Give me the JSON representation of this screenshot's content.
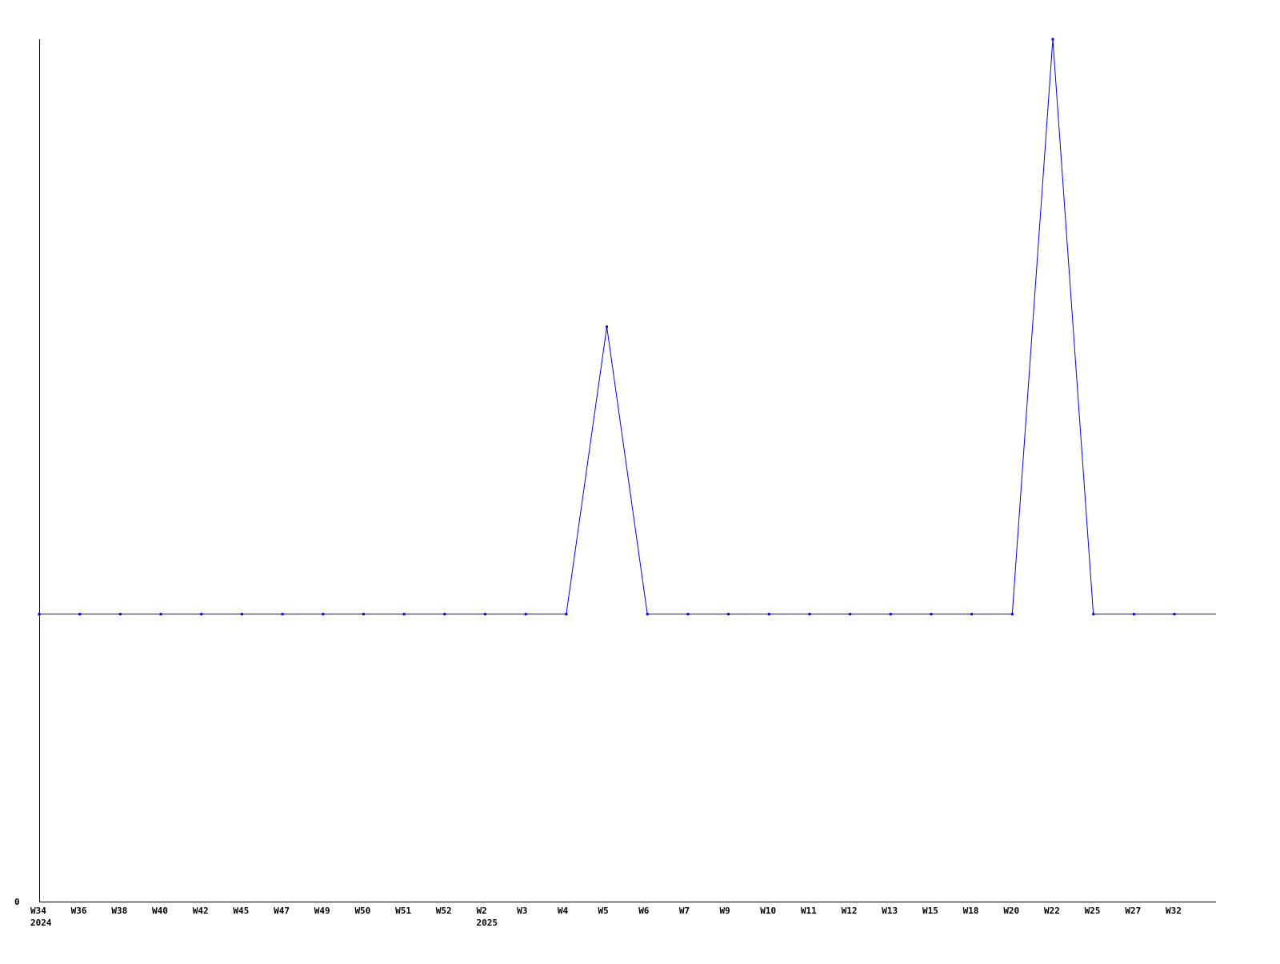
{
  "chart_data": {
    "type": "line",
    "categories": [
      "W34",
      "W36",
      "W38",
      "W40",
      "W42",
      "W45",
      "W47",
      "W49",
      "W50",
      "W51",
      "W52",
      "W2",
      "W3",
      "W4",
      "W5",
      "W6",
      "W7",
      "W9",
      "W10",
      "W11",
      "W12",
      "W13",
      "W15",
      "W18",
      "W20",
      "W22",
      "W25",
      "W27",
      "W32"
    ],
    "year_labels": [
      {
        "index": 0,
        "label": "2024"
      },
      {
        "index": 11,
        "label": "2025"
      }
    ],
    "values": [
      1,
      1,
      1,
      1,
      1,
      1,
      1,
      1,
      1,
      1,
      1,
      1,
      1,
      1,
      2,
      1,
      1,
      1,
      1,
      1,
      1,
      1,
      1,
      1,
      1,
      3,
      1,
      1,
      1
    ],
    "y_tick_labels": [
      "0"
    ],
    "ylim": [
      0,
      3
    ],
    "title": "",
    "xlabel": "",
    "ylabel": "",
    "grid": false,
    "line_color": "#0000ff",
    "axis_color": "#000000"
  }
}
